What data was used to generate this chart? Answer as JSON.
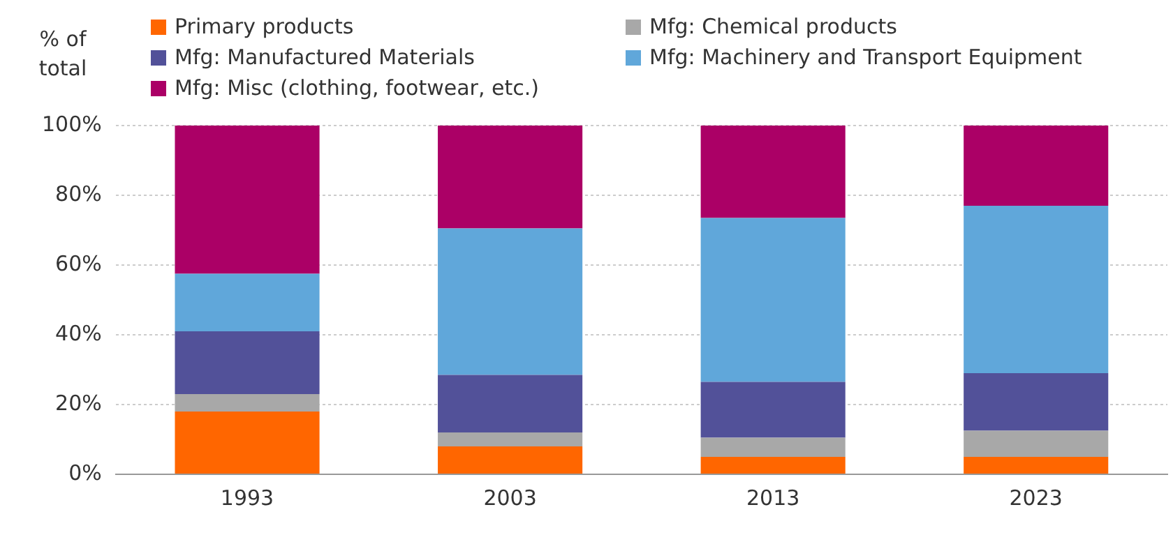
{
  "chart_data": {
    "type": "bar",
    "stacked": true,
    "ylabel": "% of total",
    "legend": "top",
    "grid": "y",
    "categories": [
      "1993",
      "2003",
      "2013",
      "2023"
    ],
    "series": [
      {
        "name": "Primary products",
        "color": "#ff6600",
        "values": [
          18,
          8,
          5,
          5
        ]
      },
      {
        "name": "Mfg: Chemical products",
        "color": "#a8a8a8",
        "values": [
          5,
          4,
          5.5,
          7.5
        ]
      },
      {
        "name": "Mfg: Manufactured Materials",
        "color": "#525199",
        "values": [
          18,
          16.5,
          16,
          16.5
        ]
      },
      {
        "name": "Mfg: Machinery and Transport Equipment",
        "color": "#60a7da",
        "values": [
          16.5,
          42,
          47,
          48
        ]
      },
      {
        "name": "Mfg: Misc (clothing, footwear, etc.)",
        "color": "#ab0066",
        "values": [
          42.5,
          29.5,
          26.5,
          23
        ]
      }
    ],
    "ylim": [
      0,
      100
    ],
    "yticks": [
      {
        "value": 0,
        "label": "0%"
      },
      {
        "value": 20,
        "label": "20%"
      },
      {
        "value": 40,
        "label": "40%"
      },
      {
        "value": 60,
        "label": "60%"
      },
      {
        "value": 80,
        "label": "80%"
      },
      {
        "value": 100,
        "label": "100%"
      }
    ]
  }
}
